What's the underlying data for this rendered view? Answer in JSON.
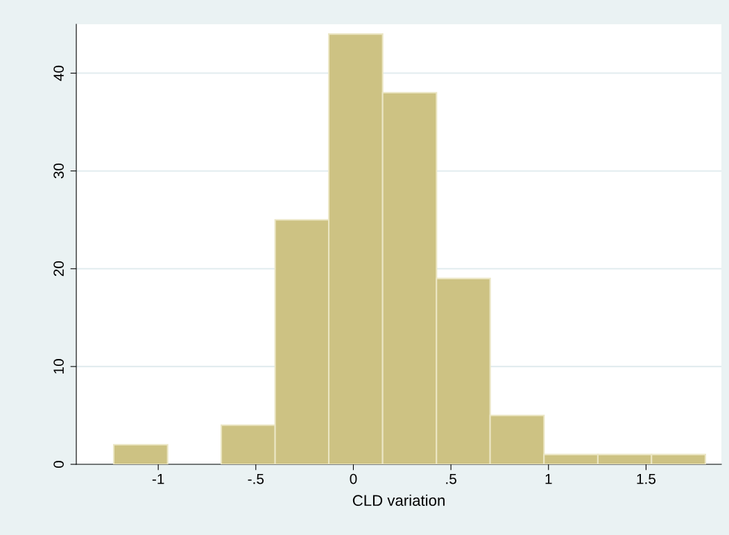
{
  "chart_data": {
    "type": "histogram",
    "xlabel": "CLD variation",
    "bins": [
      -1.228,
      -0.952,
      -0.677,
      -0.401,
      -0.126,
      0.15,
      0.426,
      0.701,
      0.977,
      1.253,
      1.528,
      1.804
    ],
    "values": [
      2,
      0,
      4,
      25,
      44,
      38,
      19,
      5,
      1,
      1,
      1
    ],
    "color": "#cdc283",
    "xlim": [
      -1.42,
      1.886
    ],
    "ylim": [
      0,
      45
    ],
    "xticks": [
      {
        "value": -1,
        "label": "-1"
      },
      {
        "value": -0.5,
        "label": "-.5"
      },
      0,
      {
        "value": 0.5,
        "label": ".5"
      },
      1,
      1.5
    ],
    "yticks": [
      0,
      10,
      20,
      30,
      40
    ],
    "grid": "y"
  }
}
